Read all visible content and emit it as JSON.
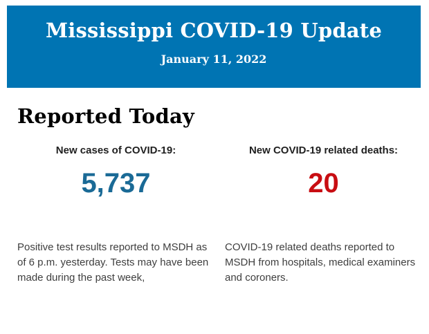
{
  "header": {
    "title": "Mississippi COVID-19 Update",
    "date": "January 11, 2022",
    "background_color": "#0074b3",
    "text_color": "#ffffff"
  },
  "section": {
    "heading": "Reported Today"
  },
  "stats": [
    {
      "label": "New cases of COVID-19:",
      "value": "5,737",
      "value_color": "#1a6a96",
      "description": "Positive test results reported to MSDH as of 6 p.m. yesterday. Tests may have been made during the past week,"
    },
    {
      "label": "New COVID-19 related deaths:",
      "value": "20",
      "value_color": "#c80d12",
      "description": "COVID-19 related deaths reported to MSDH from hospitals, medical examiners and coroners."
    }
  ]
}
